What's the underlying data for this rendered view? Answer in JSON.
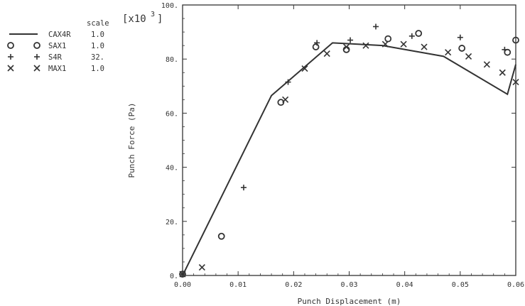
{
  "chart_data": {
    "type": "scatter",
    "xlabel": "Punch Displacement (m)",
    "ylabel": "Punch Force (Pa)",
    "xlim": [
      0,
      0.06
    ],
    "ylim": [
      0,
      100
    ],
    "x_ticks": [
      0,
      0.01,
      0.02,
      0.03,
      0.04,
      0.05,
      0.06
    ],
    "x_tick_labels": [
      "0.00",
      "0.01",
      "0.02",
      "0.03",
      "0.04",
      "0.05",
      "0.06"
    ],
    "y_ticks": [
      0,
      20,
      40,
      60,
      80,
      100
    ],
    "y_tick_labels": [
      "0.",
      "20.",
      "40.",
      "60.",
      "80.",
      "100."
    ],
    "y_multiplier_base": "[x10",
    "y_multiplier_exp": "3",
    "y_multiplier_close": "]",
    "grid": false,
    "legend": {
      "header": "scale",
      "position": "top-left"
    },
    "series": [
      {
        "name": "CAX4R",
        "scale": "1.0",
        "style": "line",
        "color": "#333333",
        "x": [
          0.0,
          0.016,
          0.027,
          0.036,
          0.047,
          0.0585,
          0.06
        ],
        "y": [
          0.0,
          66.5,
          86.0,
          85.0,
          81.0,
          67.0,
          78.0
        ]
      },
      {
        "name": "SAX1",
        "scale": "1.0",
        "style": "circle",
        "color": "#333333",
        "x": [
          0.0,
          0.007,
          0.0177,
          0.024,
          0.0295,
          0.037,
          0.0425,
          0.0503,
          0.0585,
          0.06
        ],
        "y": [
          0.5,
          14.5,
          64.0,
          84.5,
          83.5,
          87.5,
          89.5,
          84.0,
          82.5,
          87.0
        ]
      },
      {
        "name": "S4R",
        "scale": "32.",
        "style": "plus",
        "color": "#333333",
        "x": [
          0.0,
          0.011,
          0.019,
          0.0242,
          0.0302,
          0.0348,
          0.0413,
          0.05,
          0.058
        ],
        "y": [
          0.5,
          32.5,
          71.5,
          86.0,
          87.0,
          92.0,
          88.5,
          88.0,
          83.5
        ]
      },
      {
        "name": "MAX1",
        "scale": "1.0",
        "style": "cross",
        "color": "#333333",
        "x": [
          0.0,
          0.0035,
          0.0185,
          0.022,
          0.026,
          0.0295,
          0.033,
          0.0365,
          0.0398,
          0.0435,
          0.0478,
          0.0515,
          0.0548,
          0.0576,
          0.06
        ],
        "y": [
          0.5,
          3.0,
          65.0,
          76.5,
          82.0,
          84.5,
          85.0,
          85.5,
          85.5,
          84.5,
          82.5,
          81.0,
          78.0,
          75.0,
          71.5
        ]
      }
    ]
  }
}
